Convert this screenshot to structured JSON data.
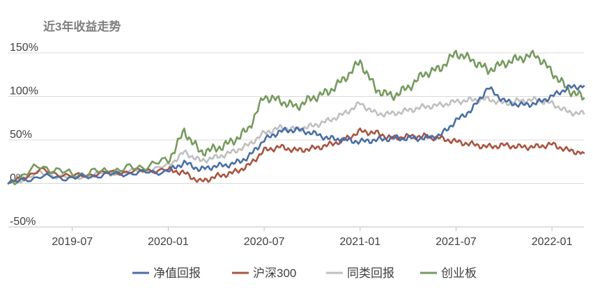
{
  "chart_data": {
    "type": "line",
    "title": "近3年收益走势",
    "x_ticks": [
      "2019-07",
      "2020-01",
      "2020-07",
      "2021-01",
      "2021-07",
      "2022-01"
    ],
    "y_ticks": [
      "150%",
      "100%",
      "50%",
      "0%",
      "-50%"
    ],
    "y_tick_values": [
      150,
      100,
      50,
      0,
      -50
    ],
    "ylim": [
      -50,
      150
    ],
    "grid": true,
    "legend_position": "bottom",
    "x_start": "2019-03",
    "x_end": "2022-03",
    "x_tick_positions": [
      "2019-07",
      "2020-01",
      "2020-07",
      "2021-01",
      "2021-07",
      "2022-01"
    ],
    "series": [
      {
        "name": "净值回报",
        "color": "#4a6ea5",
        "x": [
          "2019-03",
          "2019-05",
          "2019-07",
          "2019-09",
          "2019-11",
          "2020-01",
          "2020-02",
          "2020-03",
          "2020-04",
          "2020-05",
          "2020-06",
          "2020-07",
          "2020-08",
          "2020-09",
          "2020-10",
          "2020-11",
          "2020-12",
          "2021-01",
          "2021-02",
          "2021-03",
          "2021-04",
          "2021-05",
          "2021-06",
          "2021-07",
          "2021-08",
          "2021-09",
          "2021-10",
          "2021-11",
          "2021-12",
          "2022-01",
          "2022-02",
          "2022-03"
        ],
        "values": [
          0,
          8,
          6,
          10,
          12,
          14,
          24,
          16,
          20,
          22,
          30,
          50,
          60,
          62,
          58,
          52,
          50,
          48,
          50,
          52,
          52,
          52,
          55,
          72,
          85,
          110,
          95,
          90,
          92,
          100,
          110,
          112
        ]
      },
      {
        "name": "沪深300",
        "color": "#a9543f",
        "x": [
          "2019-03",
          "2019-05",
          "2019-07",
          "2019-09",
          "2019-11",
          "2020-01",
          "2020-02",
          "2020-03",
          "2020-04",
          "2020-05",
          "2020-06",
          "2020-07",
          "2020-08",
          "2020-09",
          "2020-10",
          "2020-11",
          "2020-12",
          "2021-01",
          "2021-02",
          "2021-03",
          "2021-04",
          "2021-05",
          "2021-06",
          "2021-07",
          "2021-08",
          "2021-09",
          "2021-10",
          "2021-11",
          "2021-12",
          "2022-01",
          "2022-02",
          "2022-03"
        ],
        "values": [
          0,
          15,
          8,
          12,
          14,
          16,
          12,
          2,
          8,
          12,
          20,
          38,
          42,
          38,
          40,
          44,
          50,
          60,
          58,
          52,
          54,
          54,
          52,
          48,
          45,
          42,
          44,
          42,
          42,
          45,
          38,
          35
        ]
      },
      {
        "name": "同类回报",
        "color": "#bfbfbf",
        "x": [
          "2019-03",
          "2019-05",
          "2019-07",
          "2019-09",
          "2019-11",
          "2020-01",
          "2020-02",
          "2020-03",
          "2020-04",
          "2020-05",
          "2020-06",
          "2020-07",
          "2020-08",
          "2020-09",
          "2020-10",
          "2020-11",
          "2020-12",
          "2021-01",
          "2021-02",
          "2021-03",
          "2021-04",
          "2021-05",
          "2021-06",
          "2021-07",
          "2021-08",
          "2021-09",
          "2021-10",
          "2021-11",
          "2021-12",
          "2022-01",
          "2022-02",
          "2022-03"
        ],
        "values": [
          0,
          12,
          6,
          12,
          14,
          20,
          36,
          26,
          30,
          36,
          44,
          58,
          64,
          62,
          66,
          72,
          80,
          92,
          80,
          80,
          84,
          88,
          90,
          94,
          96,
          97,
          92,
          95,
          96,
          92,
          82,
          80
        ]
      },
      {
        "name": "创业板",
        "color": "#769a5e",
        "x": [
          "2019-03",
          "2019-05",
          "2019-07",
          "2019-09",
          "2019-11",
          "2020-01",
          "2020-02",
          "2020-03",
          "2020-04",
          "2020-05",
          "2020-06",
          "2020-07",
          "2020-08",
          "2020-09",
          "2020-10",
          "2020-11",
          "2020-12",
          "2021-01",
          "2021-02",
          "2021-03",
          "2021-04",
          "2021-05",
          "2021-06",
          "2021-07",
          "2021-08",
          "2021-09",
          "2021-10",
          "2021-11",
          "2021-12",
          "2022-01",
          "2022-02",
          "2022-03"
        ],
        "values": [
          0,
          20,
          10,
          14,
          18,
          26,
          60,
          36,
          40,
          48,
          62,
          100,
          95,
          88,
          98,
          105,
          120,
          140,
          108,
          100,
          110,
          126,
          132,
          150,
          142,
          130,
          138,
          144,
          148,
          128,
          108,
          98
        ]
      }
    ]
  }
}
